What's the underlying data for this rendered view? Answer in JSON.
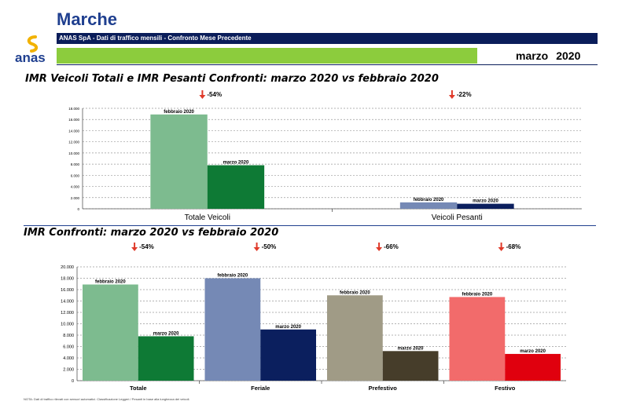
{
  "header": {
    "region": "Marche",
    "subtitle": "ANAS SpA - Dati di traffico mensili - Confronto Mese Precedente",
    "month": "marzo",
    "year": "2020",
    "logo_text": "anas"
  },
  "section1": {
    "title": "IMR Veicoli Totali e IMR Pesanti Confronti: marzo 2020 vs febbraio 2020"
  },
  "section2": {
    "title": "IMR Confronti: marzo 2020 vs febbraio 2020"
  },
  "footnote": "NOTA: Dati di traffico rilevati con sensori automatici. Classificazione Leggeri / Pesanti in base alla lunghezza dei veicoli.",
  "colors": {
    "feb_total": "#7dbb8f",
    "mar_total": "#0e7a35",
    "feb_heavy": "#7589b5",
    "mar_heavy": "#0b1f5e",
    "feb_pref": "#a09b86",
    "mar_pref": "#463d2a",
    "feb_fest": "#f26b6b",
    "mar_fest": "#e0000e",
    "arrow": "#e03a2a"
  },
  "chart_data": [
    {
      "type": "bar",
      "categories": [
        "Totale Veicoli",
        "Veicoli Pesanti"
      ],
      "series": [
        {
          "name": "febbraio 2020",
          "values": [
            16900,
            1150
          ]
        },
        {
          "name": "marzo 2020",
          "values": [
            7800,
            900
          ]
        }
      ],
      "changes": [
        "-54%",
        "-22%"
      ],
      "yticks": [
        "0",
        "2.000",
        "4.000",
        "6.000",
        "8.000",
        "10.000",
        "12.000",
        "14.000",
        "16.000",
        "18.000"
      ],
      "ylim": [
        0,
        18000
      ],
      "grid": true
    },
    {
      "type": "bar",
      "categories": [
        "Totale",
        "Feriale",
        "Prefestivo",
        "Festivo"
      ],
      "series": [
        {
          "name": "febbraio 2020",
          "values": [
            16900,
            18000,
            15000,
            14700
          ]
        },
        {
          "name": "marzo 2020",
          "values": [
            7800,
            9000,
            5200,
            4700
          ]
        }
      ],
      "changes": [
        "-54%",
        "-50%",
        "-66%",
        "-68%"
      ],
      "yticks": [
        "0",
        "2.000",
        "4.000",
        "6.000",
        "8.000",
        "10.000",
        "12.000",
        "14.000",
        "16.000",
        "18.000",
        "20.000"
      ],
      "ylim": [
        0,
        20000
      ],
      "grid": true
    }
  ]
}
